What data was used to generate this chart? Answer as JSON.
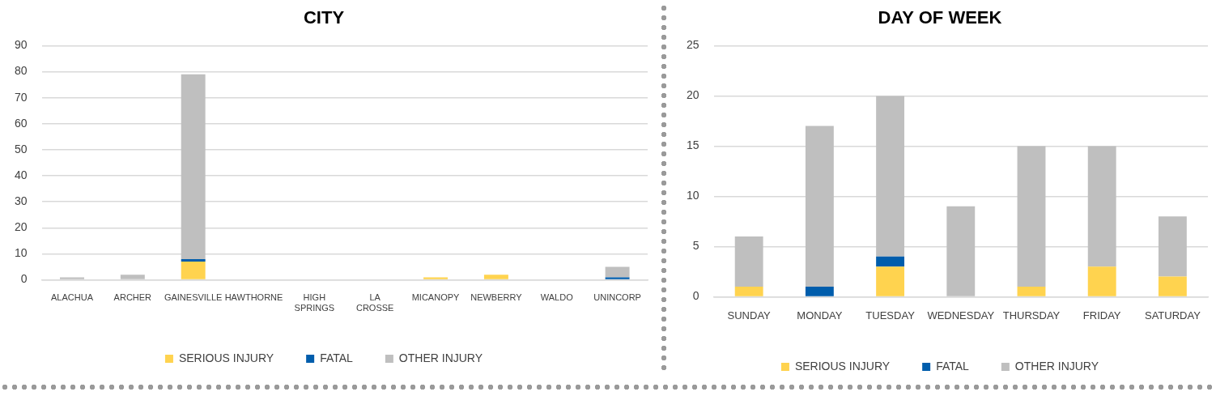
{
  "chart_data": [
    {
      "type": "bar",
      "title": "CITY",
      "stacked": true,
      "categories": [
        "ALACHUA",
        "ARCHER",
        "GAINESVILLE",
        "HAWTHORNE",
        "HIGH SPRINGS",
        "LA CROSSE",
        "MICANOPY",
        "NEWBERRY",
        "WALDO",
        "UNINCORP"
      ],
      "series": [
        {
          "name": "SERIOUS INJURY",
          "color": "#ffd34f",
          "values": [
            0,
            0,
            7,
            0,
            0,
            0,
            1,
            2,
            0,
            0
          ]
        },
        {
          "name": "FATAL",
          "color": "#005dac",
          "values": [
            0,
            0,
            1,
            0,
            0,
            0,
            0,
            0,
            0,
            1
          ]
        },
        {
          "name": "OTHER INJURY",
          "color": "#bfbfbf",
          "values": [
            1,
            2,
            71,
            0,
            0,
            0,
            0,
            0,
            0,
            4
          ]
        }
      ],
      "ylim": [
        0,
        90
      ],
      "yticks": [
        0,
        10,
        20,
        30,
        40,
        50,
        60,
        70,
        80,
        90
      ],
      "grid": "y",
      "legend": "bottom"
    },
    {
      "type": "bar",
      "title": "DAY OF WEEK",
      "stacked": true,
      "categories": [
        "SUNDAY",
        "MONDAY",
        "TUESDAY",
        "WEDNESDAY",
        "THURSDAY",
        "FRIDAY",
        "SATURDAY"
      ],
      "series": [
        {
          "name": "SERIOUS INJURY",
          "color": "#ffd34f",
          "values": [
            1,
            0,
            3,
            0,
            1,
            3,
            2
          ]
        },
        {
          "name": "FATAL",
          "color": "#005dac",
          "values": [
            0,
            1,
            1,
            0,
            0,
            0,
            0
          ]
        },
        {
          "name": "OTHER INJURY",
          "color": "#bfbfbf",
          "values": [
            5,
            16,
            16,
            9,
            14,
            12,
            6
          ]
        }
      ],
      "ylim": [
        0,
        25
      ],
      "yticks": [
        0,
        5,
        10,
        15,
        20,
        25
      ],
      "grid": "y",
      "legend": "bottom"
    }
  ]
}
